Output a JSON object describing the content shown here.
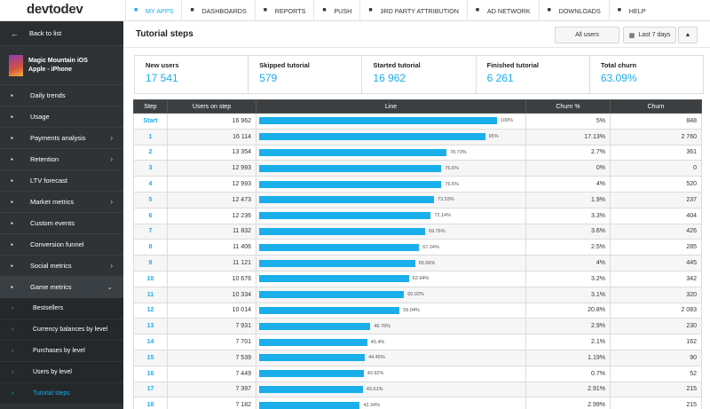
{
  "brand": {
    "logo_a": "devtodev",
    "accent": "#1aaeea"
  },
  "nav": [
    {
      "label": "MY APPS",
      "icon": "apps-grid-icon"
    },
    {
      "label": "DASHBOARDS",
      "icon": "dashboard-icon"
    },
    {
      "label": "REPORTS",
      "icon": "reports-icon"
    },
    {
      "label": "PUSH",
      "icon": "push-icon"
    },
    {
      "label": "3RD PARTY ATTRIBUTION",
      "icon": "attribution-icon"
    },
    {
      "label": "AD NETWORK",
      "icon": "ad-network-icon"
    },
    {
      "label": "DOWNLOADS",
      "icon": "download-icon"
    },
    {
      "label": "HELP",
      "icon": "help-icon"
    }
  ],
  "sidebar": {
    "back": "Back to list",
    "app_name": "Magic Mountain iOS",
    "app_platform": "Apple - iPhone",
    "items": [
      {
        "label": "Daily trends"
      },
      {
        "label": "Usage"
      },
      {
        "label": "Payments analysis"
      },
      {
        "label": "Retention"
      },
      {
        "label": "LTV forecast"
      },
      {
        "label": "Market metrics"
      },
      {
        "label": "Custom events"
      },
      {
        "label": "Conversion funnel"
      },
      {
        "label": "Social metrics"
      },
      {
        "label": "Game metrics"
      }
    ],
    "sub_items": [
      {
        "label": "Bestsellers"
      },
      {
        "label": "Currency balances by level"
      },
      {
        "label": "Purchases by level"
      },
      {
        "label": "Users by level"
      },
      {
        "label": "Tutorial steps"
      }
    ]
  },
  "page": {
    "title": "Tutorial steps",
    "all_users": "All users",
    "date_range": "Last 7 days"
  },
  "metrics": [
    {
      "label": "New users",
      "value": "17 541"
    },
    {
      "label": "Skipped tutorial",
      "value": "579"
    },
    {
      "label": "Started tutorial",
      "value": "16 962"
    },
    {
      "label": "Finished tutorial",
      "value": "6 261"
    },
    {
      "label": "Total churn",
      "value": "63.09%"
    }
  ],
  "table": {
    "headers": [
      "Step",
      "Users on step",
      "Line",
      "Churn %",
      "Churn"
    ],
    "rows": [
      {
        "step": "Start",
        "users": "16 962",
        "line": 100,
        "line_label": "100%",
        "churn_pct": "5%",
        "churn": "848"
      },
      {
        "step": "1",
        "users": "16 114",
        "line": 95,
        "line_label": "95%",
        "churn_pct": "17.13%",
        "churn": "2 760"
      },
      {
        "step": "2",
        "users": "13 354",
        "line": 78.73,
        "line_label": "78.73%",
        "churn_pct": "2.7%",
        "churn": "361"
      },
      {
        "step": "3",
        "users": "12 993",
        "line": 76.6,
        "line_label": "76.6%",
        "churn_pct": "0%",
        "churn": "0"
      },
      {
        "step": "4",
        "users": "12 993",
        "line": 76.6,
        "line_label": "76.6%",
        "churn_pct": "4%",
        "churn": "520"
      },
      {
        "step": "5",
        "users": "12 473",
        "line": 73.53,
        "line_label": "73.53%",
        "churn_pct": "1.9%",
        "churn": "237"
      },
      {
        "step": "6",
        "users": "12 236",
        "line": 72.14,
        "line_label": "72.14%",
        "churn_pct": "3.3%",
        "churn": "404"
      },
      {
        "step": "7",
        "users": "11 832",
        "line": 69.76,
        "line_label": "69.76%",
        "churn_pct": "3.6%",
        "churn": "426"
      },
      {
        "step": "8",
        "users": "11 406",
        "line": 67.24,
        "line_label": "67.24%",
        "churn_pct": "2.5%",
        "churn": "285"
      },
      {
        "step": "9",
        "users": "11 121",
        "line": 65.56,
        "line_label": "65.56%",
        "churn_pct": "4%",
        "churn": "445"
      },
      {
        "step": "10",
        "users": "10 676",
        "line": 62.94,
        "line_label": "62.94%",
        "churn_pct": "3.2%",
        "churn": "342"
      },
      {
        "step": "11",
        "users": "10 334",
        "line": 60.92,
        "line_label": "60.92%",
        "churn_pct": "3.1%",
        "churn": "320"
      },
      {
        "step": "12",
        "users": "10 014",
        "line": 59.04,
        "line_label": "59.04%",
        "churn_pct": "20.8%",
        "churn": "2 083"
      },
      {
        "step": "13",
        "users": "7 931",
        "line": 46.76,
        "line_label": "46.76%",
        "churn_pct": "2.9%",
        "churn": "230"
      },
      {
        "step": "14",
        "users": "7 701",
        "line": 45.4,
        "line_label": "45.4%",
        "churn_pct": "2.1%",
        "churn": "162"
      },
      {
        "step": "15",
        "users": "7 539",
        "line": 44.45,
        "line_label": "44.45%",
        "churn_pct": "1.19%",
        "churn": "90"
      },
      {
        "step": "16",
        "users": "7 449",
        "line": 43.92,
        "line_label": "43.92%",
        "churn_pct": "0.7%",
        "churn": "52"
      },
      {
        "step": "17",
        "users": "7 397",
        "line": 43.61,
        "line_label": "43.61%",
        "churn_pct": "2.91%",
        "churn": "215"
      },
      {
        "step": "18",
        "users": "7 182",
        "line": 42.34,
        "line_label": "42.34%",
        "churn_pct": "2.99%",
        "churn": "215"
      }
    ]
  }
}
